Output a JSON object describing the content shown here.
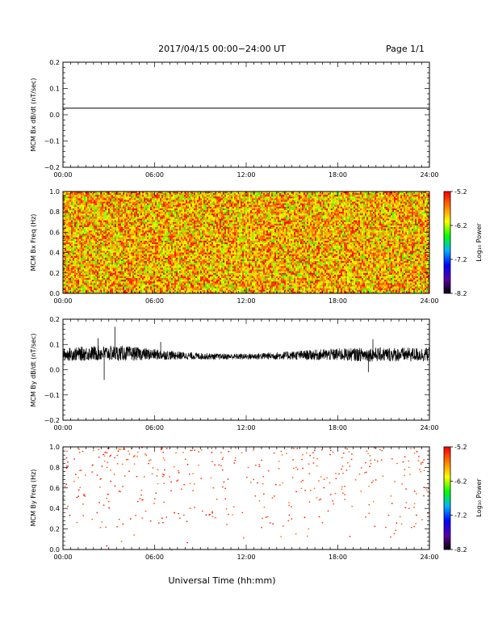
{
  "header": {
    "date_range": "2017/04/15  00:00−24:00 UT",
    "page": "Page 1/1"
  },
  "footer": {
    "xlabel": "Universal Time (hh:mm)"
  },
  "colorbar": {
    "ticks": [
      "-5.2",
      "-6.2",
      "-7.2",
      "-8.2"
    ],
    "title": "Log₁₀ Power",
    "colors": [
      "#000000",
      "#5a00a0",
      "#0000ff",
      "#00b4ff",
      "#00ff00",
      "#ffff00",
      "#ff8000",
      "#ff0000"
    ]
  },
  "chart_data": [
    {
      "type": "line",
      "ylabel": "MCM Bx dB/dt (nT/sec)",
      "ylim": [
        -0.2,
        0.2
      ],
      "yticks": [
        "0.2",
        "0.1",
        "0.0",
        "−0.1",
        "−0.2"
      ],
      "xticks": [
        "00:00",
        "06:00",
        "12:00",
        "18:00",
        "24:00"
      ],
      "x_range_hours": [
        0,
        24
      ],
      "series": [
        {
          "x": [
            0,
            24
          ],
          "values": [
            0.025,
            0.025
          ]
        }
      ]
    },
    {
      "type": "heatmap",
      "ylabel": "MCM Bx Freq (Hz)",
      "ylim": [
        0.0,
        1.0
      ],
      "yticks": [
        "1.0",
        "0.8",
        "0.6",
        "0.4",
        "0.2",
        "0.0"
      ],
      "xticks": [
        "00:00",
        "06:00",
        "12:00",
        "18:00",
        "24:00"
      ],
      "color_range": [
        -8.2,
        -5.2
      ],
      "description_values": {
        "min_log_power": -6.4,
        "max_log_power": -5.2,
        "fill": "dense"
      }
    },
    {
      "type": "line",
      "ylabel": "MCM By dB/dt (nT/sec)",
      "ylim": [
        -0.2,
        0.2
      ],
      "yticks": [
        "0.2",
        "0.1",
        "0.0",
        "−0.1",
        "−0.2"
      ],
      "xticks": [
        "00:00",
        "06:00",
        "12:00",
        "18:00",
        "24:00"
      ],
      "series": [
        {
          "x": [
            0,
            2,
            4,
            6,
            8,
            10,
            12,
            14,
            16,
            18,
            20,
            22,
            24
          ],
          "values": [
            0.06,
            0.065,
            0.065,
            0.06,
            0.055,
            0.052,
            0.052,
            0.055,
            0.058,
            0.06,
            0.06,
            0.06,
            0.06
          ],
          "envelope": [
            0.025,
            0.03,
            0.03,
            0.022,
            0.015,
            0.012,
            0.012,
            0.015,
            0.02,
            0.025,
            0.028,
            0.028,
            0.028
          ],
          "spikes": [
            [
              2.7,
              -0.04
            ],
            [
              3.4,
              0.17
            ],
            [
              2.3,
              0.125
            ],
            [
              20.0,
              -0.01
            ],
            [
              20.3,
              0.12
            ],
            [
              6.4,
              0.11
            ]
          ]
        }
      ]
    },
    {
      "type": "heatmap",
      "ylabel": "MCM By Freq (Hz)",
      "ylim": [
        0.0,
        1.0
      ],
      "yticks": [
        "1.0",
        "0.8",
        "0.6",
        "0.4",
        "0.2",
        "0.0"
      ],
      "xticks": [
        "00:00",
        "06:00",
        "12:00",
        "18:00",
        "24:00"
      ],
      "color_range": [
        -8.2,
        -5.2
      ],
      "description_values": {
        "min_log_power": -5.6,
        "max_log_power": -5.2,
        "fill": "sparse"
      }
    }
  ]
}
